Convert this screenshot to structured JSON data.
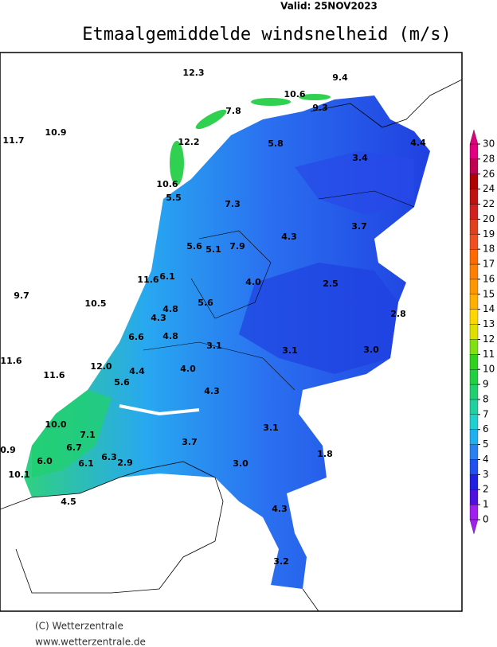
{
  "header": {
    "valid": "Valid: 25NOV2023",
    "title": "Etmaalgemiddelde windsnelheid (m/s)"
  },
  "stations": [
    "12.3",
    "9.4",
    "10.6",
    "9.3",
    "7.8",
    "11.7",
    "10.9",
    "12.2",
    "5.8",
    "4.4",
    "3.4",
    "10.6",
    "5.5",
    "7.3",
    "3.7",
    "4.3",
    "5.6",
    "5.1",
    "7.9",
    "11.6",
    "6.1",
    "4.0",
    "2.5",
    "9.7",
    "10.5",
    "5.6",
    "4.8",
    "4.3",
    "2.8",
    "6.6",
    "4.8",
    "3.1",
    "3.1",
    "3.0",
    "11.6",
    "12.0",
    "11.6",
    "4.4",
    "4.0",
    "5.6",
    "4.3",
    "10.0",
    "3.1",
    "7.1",
    "6.7",
    "3.7",
    "0.9",
    "6.3",
    "1.8",
    "6.0",
    "6.1",
    "2.9",
    "3.0",
    "10.1",
    "4.5",
    "4.3",
    "3.2"
  ],
  "colorbar": {
    "ticks": [
      0,
      1,
      2,
      3,
      4,
      5,
      6,
      7,
      8,
      9,
      10,
      11,
      12,
      13,
      14,
      15,
      16,
      17,
      18,
      19,
      20,
      22,
      24,
      26,
      28,
      30
    ],
    "colors": [
      "#a020f0",
      "#5010e0",
      "#2020e0",
      "#2050f0",
      "#2a80f0",
      "#20b0f0",
      "#20d0d0",
      "#20d0a0",
      "#20d070",
      "#20d040",
      "#30d020",
      "#80e010",
      "#e0e000",
      "#ffd700",
      "#ffb000",
      "#ff9800",
      "#ff8000",
      "#ff6a00",
      "#f05020",
      "#e04020",
      "#d02020",
      "#c01010",
      "#b00000",
      "#c00050",
      "#e00080"
    ]
  },
  "footer": {
    "copyright": "(C) Wetterzentrale",
    "url": "www.wetterzentrale.de"
  }
}
